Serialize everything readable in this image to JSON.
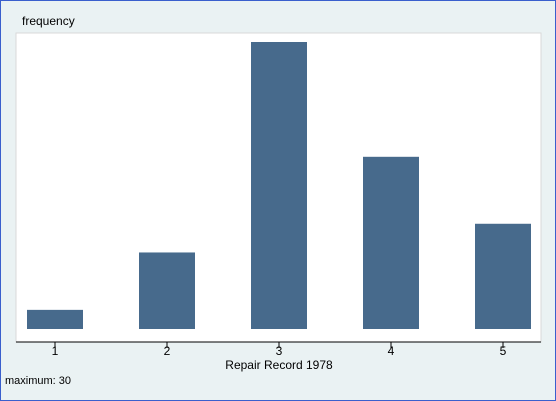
{
  "chart_data": {
    "type": "bar",
    "y_label": "frequency",
    "x_label": "Repair Record 1978",
    "categories": [
      "1",
      "2",
      "3",
      "4",
      "5"
    ],
    "values": [
      2,
      8,
      30,
      18,
      11
    ],
    "color": "#476a8c",
    "ylim": [
      0,
      30
    ],
    "note": "maximum: 30"
  }
}
